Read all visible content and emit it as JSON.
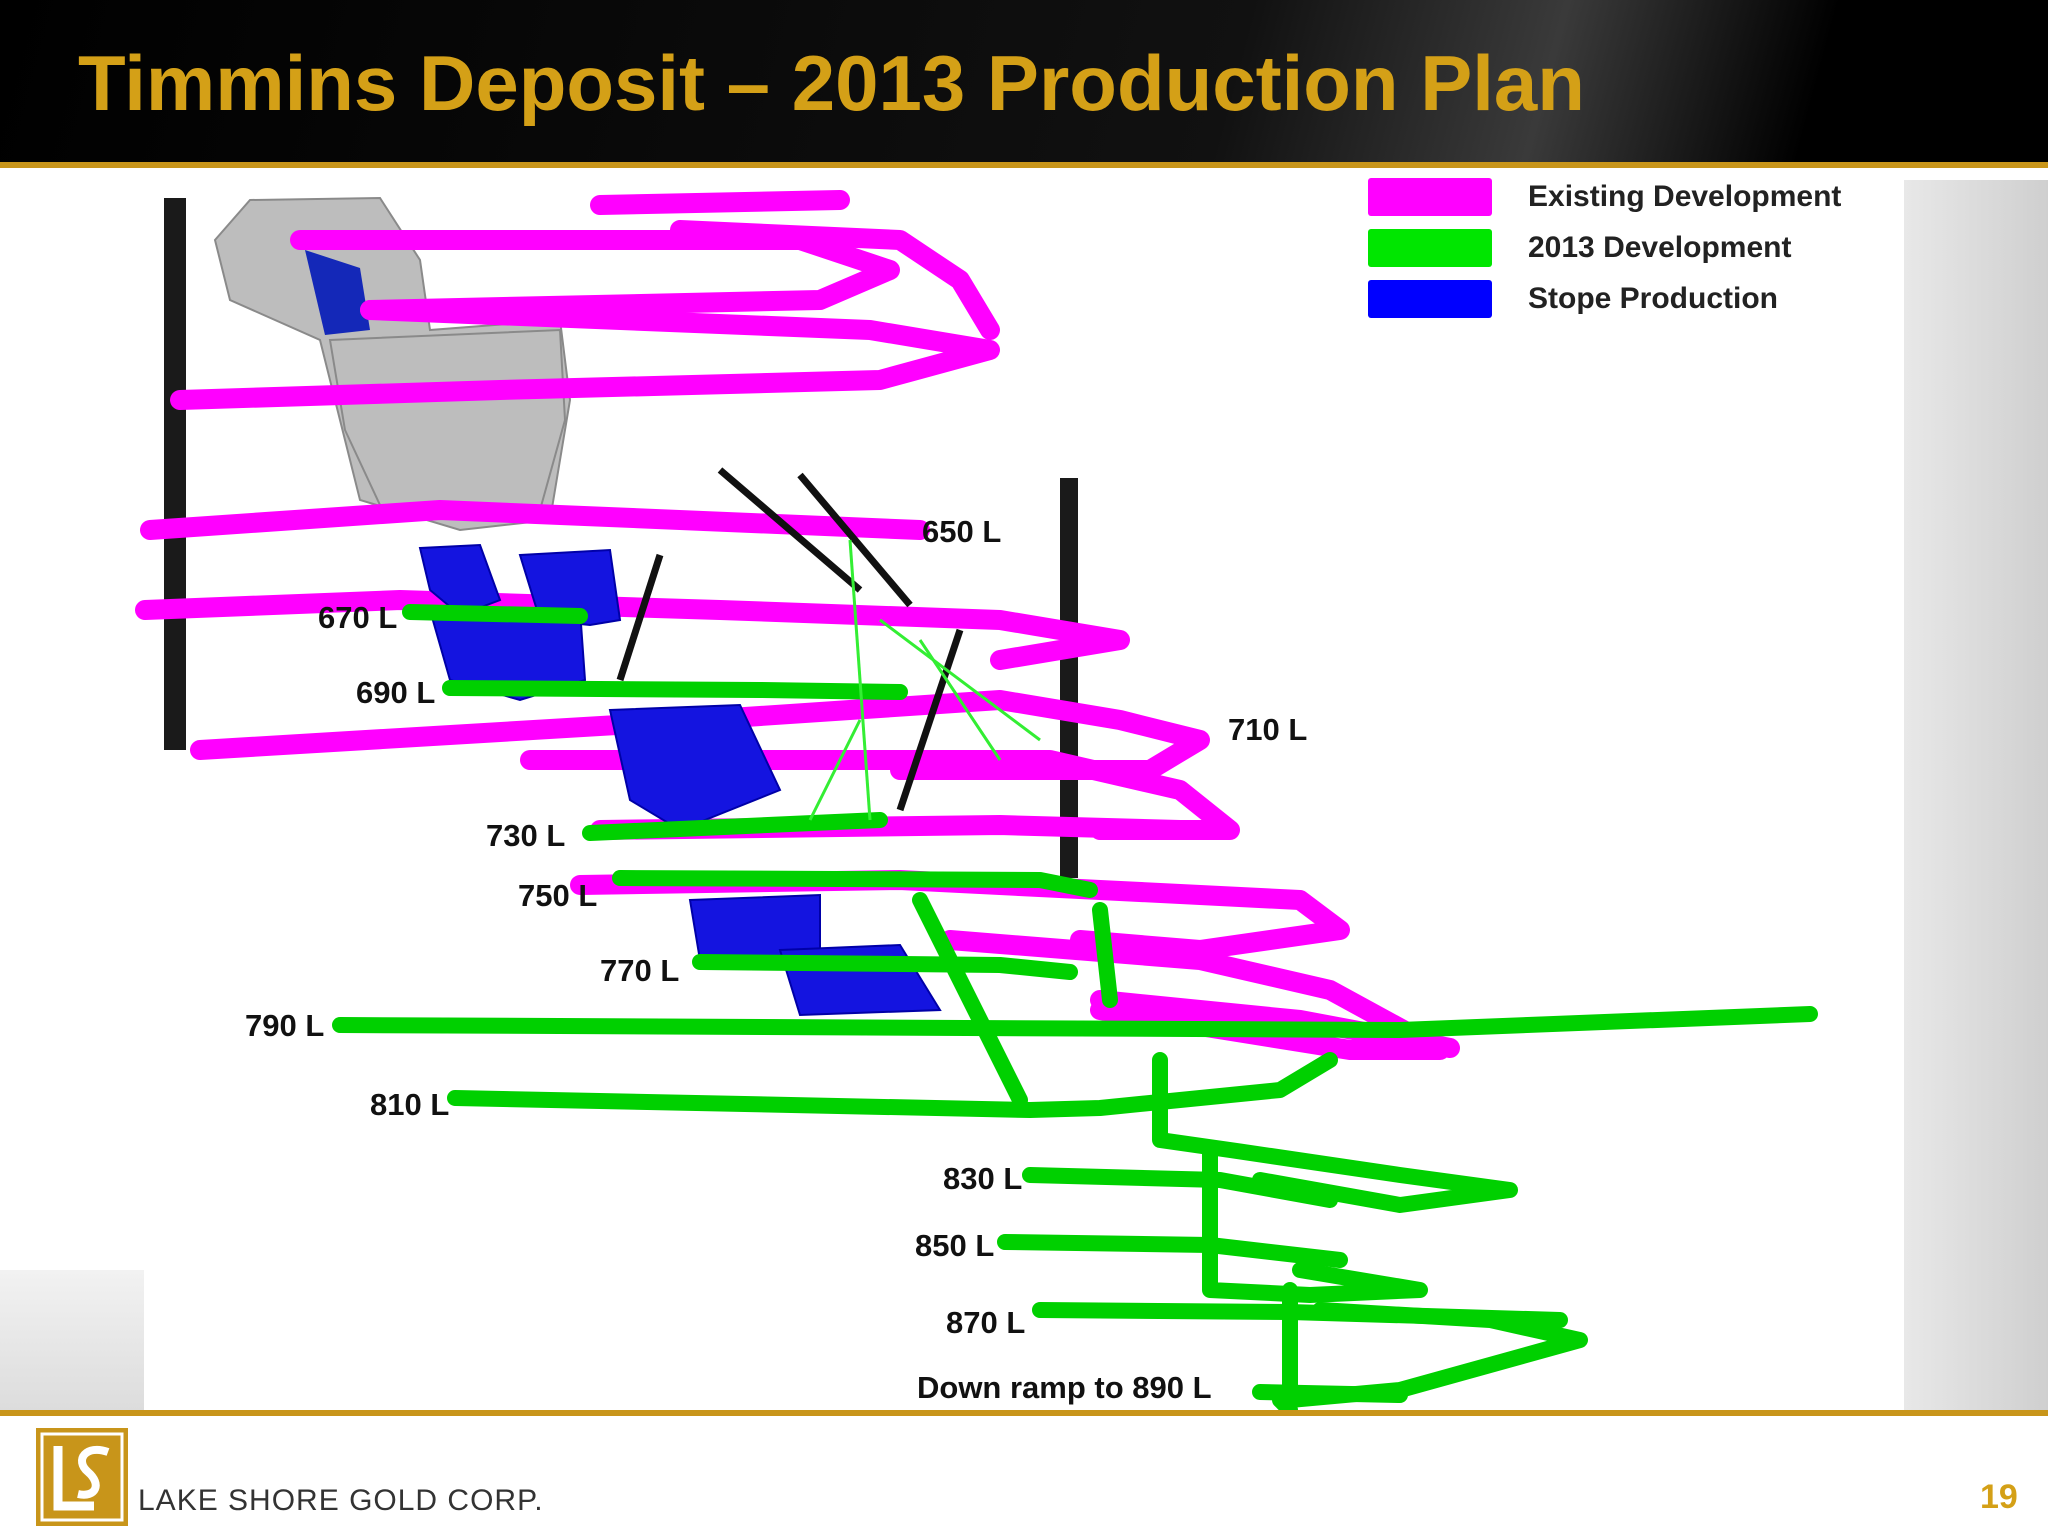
{
  "title": "Timmins Deposit – 2013 Production Plan",
  "legend": [
    {
      "label": "Existing Development",
      "color": "#ff00ff"
    },
    {
      "label": "2013 Development",
      "color": "#00e600"
    },
    {
      "label": "Stope Production",
      "color": "#0000ff"
    }
  ],
  "levels": {
    "l650": "650 L",
    "l670": "670 L",
    "l690": "690 L",
    "l710": "710 L",
    "l730": "730 L",
    "l750": "750 L",
    "l770": "770 L",
    "l790": "790 L",
    "l810": "810 L",
    "l830": "830 L",
    "l850": "850 L",
    "l870": "870 L",
    "down_ramp": "Down ramp to 890 L"
  },
  "footer": {
    "company": "LAKE SHORE GOLD CORP.",
    "page_number": "19"
  },
  "colors": {
    "accent": "#d4a017",
    "existing": "#ff00ff",
    "development_2013": "#00e600",
    "stope": "#0000ff"
  }
}
